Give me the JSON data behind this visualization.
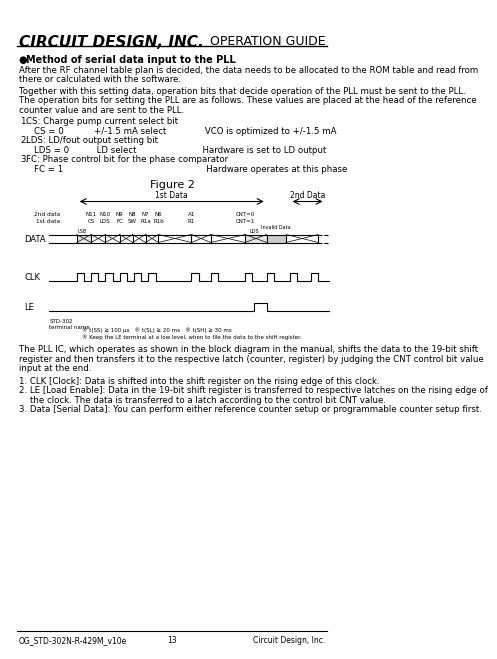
{
  "title_logo": "CIRCUIT DESIGN, INC.",
  "title_right": "OPERATION GUIDE",
  "section_title": "Method of serial data input to the PLL",
  "para1": "After the RF channel table plan is decided, the data needs to be allocated to the ROM table and read from\nthere or calculated with the software.",
  "para2": "Together with this setting data, operation bits that decide operation of the PLL must be sent to the PLL.\nThe operation bits for setting the PLL are as follows. These values are placed at the head of the reference\ncounter value and are sent to the PLL.",
  "list_items": [
    {
      "num": "1.",
      "title": "CS: Charge pump current select bit",
      "sub": "CS = 0          +/-1.5 mA select          VCO is optimized to +/-1.5 mA"
    },
    {
      "num": "2.",
      "title": "LDS: LD/fout output setting bit",
      "sub": "LDS = 0          LD select                    Hardware is set to LD output"
    },
    {
      "num": "3.",
      "title": "FC: Phase control bit for the phase comparator",
      "sub": "FC = 1                                          Hardware operates at this phase"
    }
  ],
  "figure_title": "Figure 2",
  "bottom_left": "OG_STD-302N-R-429M_v10e",
  "bottom_center": "13",
  "bottom_right": "Circuit Design, Inc.",
  "footnote_lines": [
    "1. CLK [Clock]: Data is shifted into the shift register on the rising edge of this clock.",
    "2. LE [Load Enable]: Data in the 19-bit shift register is transferred to respective latches on the rising edge of",
    "    the clock. The data is transferred to a latch according to the control bit CNT value.",
    "3. Data [Serial Data]: You can perform either reference counter setup or programmable counter setup first."
  ],
  "pll_note": "The PLL IC, which operates as shown in the block diagram in the manual, shifts the data to the 19-bit shift\nregister and then transfers it to the respective latch (counter, register) by judging the CNT control bit value\ninput at the end."
}
